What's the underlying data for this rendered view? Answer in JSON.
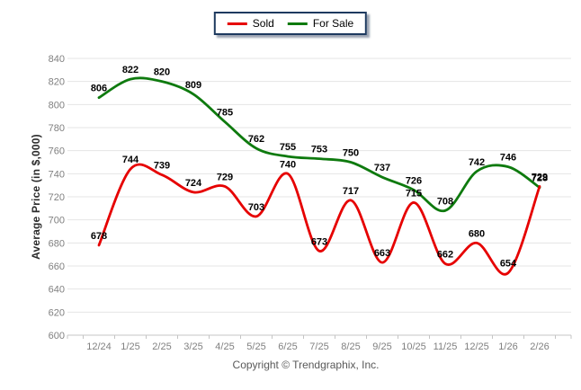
{
  "y_axis_title": "Average Price (in $,000)",
  "footer_text": "Copyright © Trendgraphix, Inc.",
  "colors": {
    "sold_line": "#e60000",
    "for_sale_line": "#0e7a0e",
    "gridline": "#e4e4e4",
    "axis_line": "#c4c4c4",
    "tick_label": "#808080",
    "data_label": "#000000",
    "legend_border": "#1e3a5f",
    "footer_text": "#595959"
  },
  "chart_data": {
    "type": "line",
    "title": "",
    "xlabel": "",
    "ylabel": "Average Price (in $,000)",
    "ylim": [
      600,
      840
    ],
    "ytick_step": 20,
    "grid": "horizontal",
    "legend_position": "top-center",
    "smooth": true,
    "data_labels": true,
    "categories": [
      "12/24",
      "1/25",
      "2/25",
      "3/25",
      "4/25",
      "5/25",
      "6/25",
      "7/25",
      "8/25",
      "9/25",
      "10/25",
      "11/25",
      "12/25",
      "1/26",
      "2/26"
    ],
    "series": [
      {
        "name": "Sold",
        "color": "#e60000",
        "values": [
          678,
          744,
          739,
          724,
          729,
          703,
          740,
          673,
          717,
          663,
          715,
          662,
          680,
          654,
          729
        ]
      },
      {
        "name": "For Sale",
        "color": "#0e7a0e",
        "values": [
          806,
          822,
          820,
          809,
          785,
          762,
          755,
          753,
          750,
          737,
          726,
          708,
          742,
          746,
          728
        ]
      }
    ]
  }
}
